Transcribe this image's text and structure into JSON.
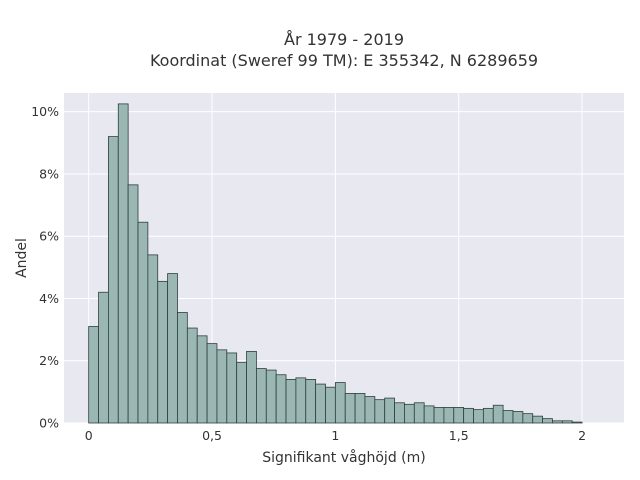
{
  "chart_data": {
    "type": "bar",
    "title_line1": "År 1979 - 2019",
    "title_line2": "Koordinat (Sweref 99 TM): E 355342, N 6289659",
    "xlabel": "Signifikant våghöjd (m)",
    "ylabel": "Andel",
    "xlim": [
      -0.1,
      2.17
    ],
    "ylim": [
      0,
      10.6
    ],
    "x_ticks": [
      0,
      0.5,
      1,
      1.5,
      2
    ],
    "x_tick_labels": [
      "0",
      "0,5",
      "1",
      "1,5",
      "2"
    ],
    "y_ticks": [
      0,
      2,
      4,
      6,
      8,
      10
    ],
    "y_tick_labels": [
      "0%",
      "2%",
      "4%",
      "6%",
      "8%",
      "10%"
    ],
    "grid": true,
    "bin_start": 0.0,
    "bin_width": 0.04,
    "values": [
      3.1,
      4.2,
      9.2,
      10.25,
      7.65,
      6.45,
      5.4,
      4.55,
      4.8,
      3.55,
      3.05,
      2.8,
      2.55,
      2.35,
      2.25,
      1.95,
      2.3,
      1.75,
      1.7,
      1.55,
      1.4,
      1.45,
      1.4,
      1.25,
      1.15,
      1.3,
      0.95,
      0.95,
      0.85,
      0.75,
      0.8,
      0.65,
      0.6,
      0.65,
      0.55,
      0.5,
      0.5,
      0.5,
      0.47,
      0.43,
      0.47,
      0.57,
      0.4,
      0.37,
      0.3,
      0.22,
      0.14,
      0.07,
      0.07,
      0.03
    ],
    "colors": {
      "bar_fill": "#9ab7b3",
      "bar_stroke": "#2f3f3d",
      "plot_bg": "#e8e8f1",
      "grid": "#ffffff"
    }
  }
}
